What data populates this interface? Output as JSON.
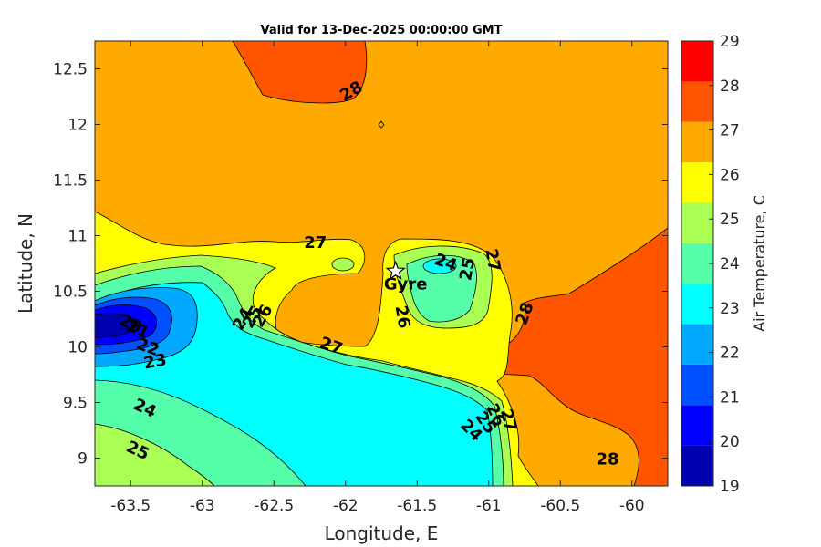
{
  "chart_data": {
    "type": "contour",
    "title": "Valid for 13-Dec-2025 00:00:00 GMT",
    "xlabel": "Longitude, E",
    "ylabel": "Latitude, N",
    "xlim": [
      -63.75,
      -59.75
    ],
    "ylim": [
      8.75,
      12.75
    ],
    "x_ticks": [
      "-63.5",
      "-63",
      "-62.5",
      "-62",
      "-61.5",
      "-61",
      "-60.5",
      "-60"
    ],
    "y_ticks": [
      "9",
      "9.5",
      "10",
      "10.5",
      "11",
      "11.5",
      "12",
      "12.5"
    ],
    "colorbar": {
      "label": "Air Temperature, C",
      "ticks": [
        "19",
        "20",
        "21",
        "22",
        "23",
        "24",
        "25",
        "26",
        "27",
        "28",
        "29"
      ],
      "colors": [
        "#0000b0",
        "#0000ff",
        "#0050ff",
        "#00a8ff",
        "#00ffff",
        "#55ffaa",
        "#aaff55",
        "#ffff00",
        "#ffaa00",
        "#ff5500",
        "#ff0000"
      ]
    },
    "contour_labels": [
      {
        "text": "28",
        "lon": -61.96,
        "lat": 12.3,
        "angle": -30
      },
      {
        "text": "27",
        "lon": -62.21,
        "lat": 10.94,
        "angle": 0
      },
      {
        "text": "20",
        "lon": -63.5,
        "lat": 10.21,
        "angle": 25
      },
      {
        "text": "21",
        "lon": -63.45,
        "lat": 10.16,
        "angle": 25
      },
      {
        "text": "22",
        "lon": -63.38,
        "lat": 10.0,
        "angle": 20
      },
      {
        "text": "23",
        "lon": -63.33,
        "lat": 9.87,
        "angle": -10
      },
      {
        "text": "24",
        "lon": -63.4,
        "lat": 9.45,
        "angle": 25
      },
      {
        "text": "25",
        "lon": -63.45,
        "lat": 9.07,
        "angle": 25
      },
      {
        "text": "24",
        "lon": -62.72,
        "lat": 10.25,
        "angle": -60
      },
      {
        "text": "25",
        "lon": -62.65,
        "lat": 10.27,
        "angle": -60
      },
      {
        "text": "26",
        "lon": -62.58,
        "lat": 10.28,
        "angle": -60
      },
      {
        "text": "27",
        "lon": -62.1,
        "lat": 10.01,
        "angle": 20
      },
      {
        "text": "24",
        "lon": -61.3,
        "lat": 10.76,
        "angle": 20
      },
      {
        "text": "25",
        "lon": -61.15,
        "lat": 10.7,
        "angle": -80
      },
      {
        "text": "27",
        "lon": -60.97,
        "lat": 10.78,
        "angle": 80
      },
      {
        "text": "26",
        "lon": -61.6,
        "lat": 10.27,
        "angle": 80
      },
      {
        "text": "28",
        "lon": -60.75,
        "lat": 10.3,
        "angle": -70
      },
      {
        "text": "24",
        "lon": -61.12,
        "lat": 9.25,
        "angle": 45
      },
      {
        "text": "25",
        "lon": -61.02,
        "lat": 9.32,
        "angle": 55
      },
      {
        "text": "26",
        "lon": -60.95,
        "lat": 9.39,
        "angle": 65
      },
      {
        "text": "27",
        "lon": -60.86,
        "lat": 9.34,
        "angle": 75
      },
      {
        "text": "28",
        "lon": -60.17,
        "lat": 8.99,
        "angle": 0
      }
    ],
    "marker": {
      "label": "Gyre",
      "lon": -61.65,
      "lat": 10.68,
      "symbol": "star"
    }
  }
}
